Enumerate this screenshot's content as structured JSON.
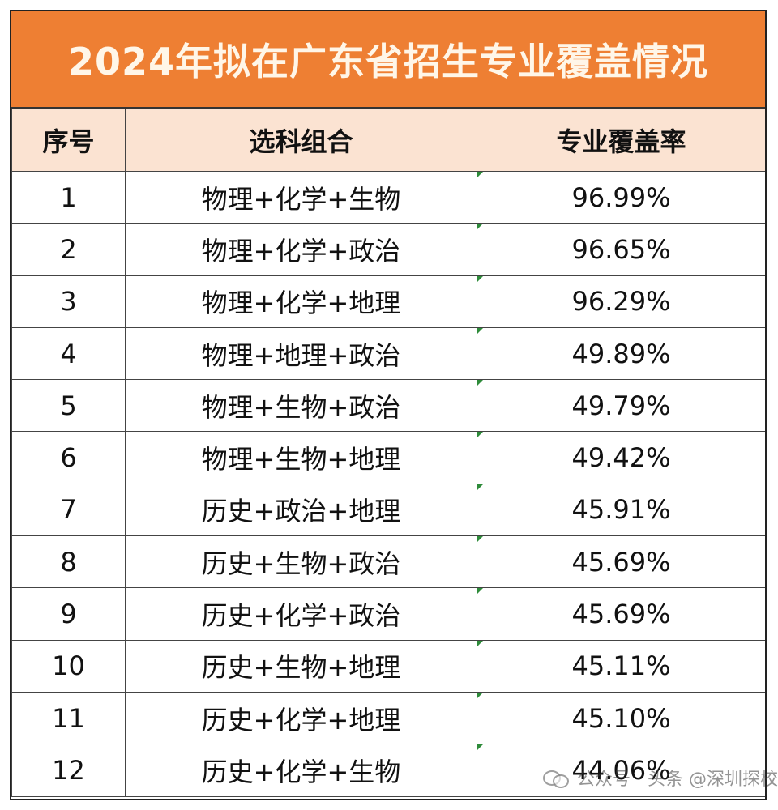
{
  "title": "2024年拟在广东省招生专业覆盖情况",
  "table": {
    "headers": [
      "序号",
      "选科组合",
      "专业覆盖率"
    ],
    "rows": [
      {
        "no": "1",
        "combo": "物理+化学+生物",
        "rate": "96.99%"
      },
      {
        "no": "2",
        "combo": "物理+化学+政治",
        "rate": "96.65%"
      },
      {
        "no": "3",
        "combo": "物理+化学+地理",
        "rate": "96.29%"
      },
      {
        "no": "4",
        "combo": "物理+地理+政治",
        "rate": "49.89%"
      },
      {
        "no": "5",
        "combo": "物理+生物+政治",
        "rate": "49.79%"
      },
      {
        "no": "6",
        "combo": "物理+生物+地理",
        "rate": "49.42%"
      },
      {
        "no": "7",
        "combo": "历史+政治+地理",
        "rate": "45.91%"
      },
      {
        "no": "8",
        "combo": "历史+生物+政治",
        "rate": "45.69%"
      },
      {
        "no": "9",
        "combo": "历史+化学+政治",
        "rate": "45.69%"
      },
      {
        "no": "10",
        "combo": "历史+生物+地理",
        "rate": "45.11%"
      },
      {
        "no": "11",
        "combo": "历史+化学+地理",
        "rate": "45.10%"
      },
      {
        "no": "12",
        "combo": "历史+化学+生物",
        "rate": "44.06%"
      }
    ]
  },
  "watermark": {
    "icon": "wechat-icon",
    "text": "公众号 · 头条 @深圳探校"
  },
  "colors": {
    "title_bg": "#ee7f33",
    "header_bg": "#fbe3d2",
    "cell_marker": "#2e8b3a"
  }
}
